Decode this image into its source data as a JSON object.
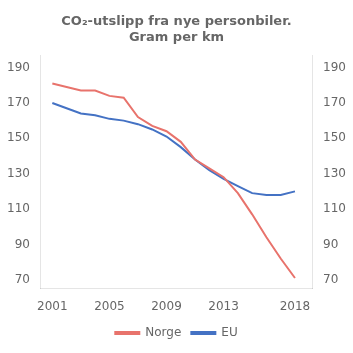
{
  "chart_data": {
    "type": "line",
    "title": "CO₂-utslipp fra nye personbiler.\nGram per km",
    "x": [
      2001,
      2002,
      2003,
      2004,
      2005,
      2006,
      2007,
      2008,
      2009,
      2010,
      2011,
      2012,
      2013,
      2014,
      2015,
      2016,
      2017,
      2018
    ],
    "series": [
      {
        "name": "Norge",
        "color": "#E8736C",
        "values": [
          181,
          179,
          177,
          177,
          174,
          173,
          162,
          157,
          154,
          148,
          138,
          133,
          128,
          119,
          107,
          94,
          82,
          71
        ]
      },
      {
        "name": "EU",
        "color": "#4472C4",
        "values": [
          170,
          167,
          164,
          163,
          161,
          160,
          158,
          155,
          151,
          145,
          138,
          132,
          127,
          123,
          119,
          118,
          118,
          120
        ]
      }
    ],
    "xlim": [
      2000.2,
      2019.2
    ],
    "xticks": [
      2001,
      2005,
      2009,
      2013,
      2018
    ],
    "ylim": [
      65,
      197
    ],
    "yticks": [
      70,
      90,
      110,
      130,
      150,
      170,
      190
    ],
    "y2lim": [
      65,
      197
    ],
    "y2ticks": [
      70,
      90,
      110,
      130,
      150,
      170,
      190
    ],
    "grid": false,
    "legend": "bottom"
  }
}
